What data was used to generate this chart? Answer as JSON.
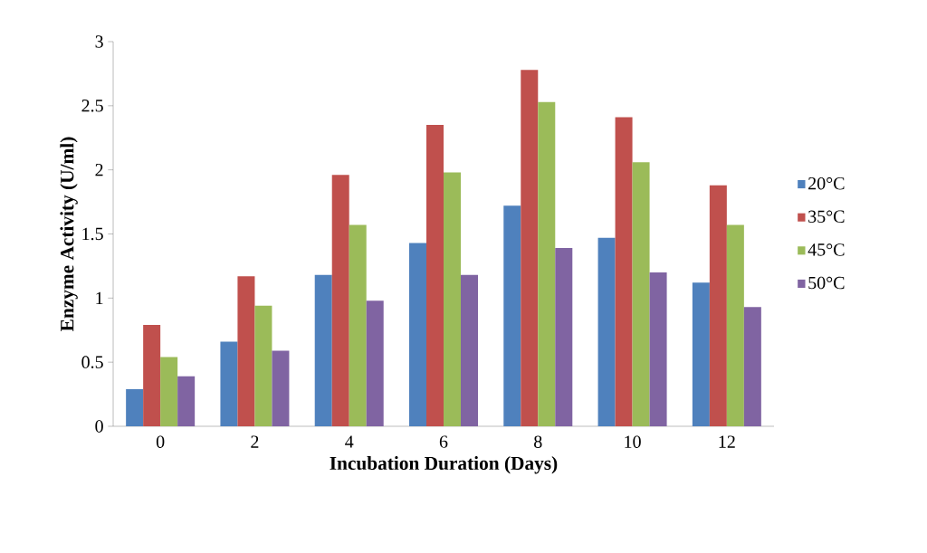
{
  "chart_data": {
    "type": "bar",
    "xlabel": "Incubation Duration (Days)",
    "ylabel": "Enzyme  Activity  (U/ml)",
    "categories": [
      "0",
      "2",
      "4",
      "6",
      "8",
      "10",
      "12"
    ],
    "series": [
      {
        "name": "20°C",
        "color": "#4f81bd",
        "values": [
          0.29,
          0.66,
          1.18,
          1.43,
          1.72,
          1.47,
          1.12
        ]
      },
      {
        "name": "35°C",
        "color": "#c0504d",
        "values": [
          0.79,
          1.17,
          1.96,
          2.35,
          2.78,
          2.41,
          1.88
        ]
      },
      {
        "name": "45°C",
        "color": "#9bbb59",
        "values": [
          0.54,
          0.94,
          1.57,
          1.98,
          2.53,
          2.06,
          1.57
        ]
      },
      {
        "name": "50°C",
        "color": "#8064a2",
        "values": [
          0.39,
          0.59,
          0.98,
          1.18,
          1.39,
          1.2,
          0.93
        ]
      }
    ],
    "ylim": [
      0,
      3
    ],
    "yticks": [
      0,
      0.5,
      1,
      1.5,
      2,
      2.5,
      3
    ],
    "grid": false,
    "legend": "right"
  }
}
